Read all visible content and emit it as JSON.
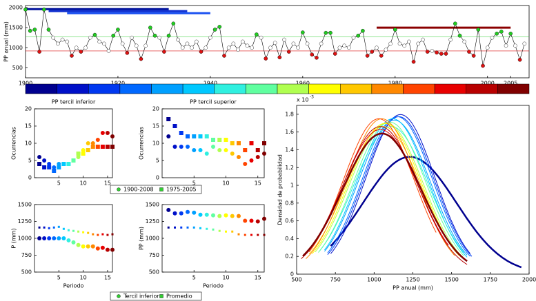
{
  "chart_data": [
    {
      "type": "line",
      "y_label": "PP anual (mm)",
      "x": [
        1900,
        1901,
        1902,
        1903,
        1904,
        1905,
        1906,
        1907,
        1908,
        1909,
        1910,
        1911,
        1912,
        1913,
        1914,
        1915,
        1916,
        1917,
        1918,
        1919,
        1920,
        1921,
        1922,
        1923,
        1924,
        1925,
        1926,
        1927,
        1928,
        1929,
        1930,
        1931,
        1932,
        1933,
        1934,
        1935,
        1936,
        1937,
        1938,
        1939,
        1940,
        1941,
        1942,
        1943,
        1944,
        1945,
        1946,
        1947,
        1948,
        1949,
        1950,
        1951,
        1952,
        1953,
        1954,
        1955,
        1956,
        1957,
        1958,
        1959,
        1960,
        1961,
        1962,
        1963,
        1964,
        1965,
        1966,
        1967,
        1968,
        1969,
        1970,
        1971,
        1972,
        1973,
        1974,
        1975,
        1976,
        1977,
        1978,
        1979,
        1980,
        1981,
        1982,
        1983,
        1984,
        1985,
        1986,
        1987,
        1988,
        1989,
        1990,
        1991,
        1992,
        1993,
        1994,
        1995,
        1996,
        1997,
        1998,
        1999,
        2000,
        2001,
        2002,
        2003,
        2004,
        2005,
        2006,
        2007,
        2008
      ],
      "values": [
        1950,
        1420,
        1450,
        900,
        1950,
        1450,
        1250,
        1100,
        1200,
        1150,
        800,
        1000,
        900,
        1000,
        1250,
        1320,
        1150,
        1100,
        920,
        1300,
        1450,
        1100,
        870,
        1250,
        1050,
        720,
        1050,
        1500,
        1300,
        1250,
        900,
        1300,
        1600,
        1200,
        1000,
        1100,
        1000,
        1150,
        900,
        1000,
        1250,
        1450,
        1520,
        800,
        1000,
        1100,
        950,
        1150,
        1050,
        1000,
        1330,
        1250,
        730,
        1000,
        1120,
        760,
        1200,
        900,
        1100,
        1000,
        1380,
        1100,
        830,
        750,
        1100,
        1370,
        1370,
        850,
        1000,
        1050,
        1000,
        1250,
        1300,
        1420,
        800,
        900,
        1000,
        800,
        950,
        1100,
        1450,
        1100,
        1050,
        1150,
        650,
        1100,
        1200,
        900,
        920,
        880,
        850,
        850,
        1200,
        1600,
        1300,
        1150,
        900,
        800,
        1450,
        550,
        1000,
        1250,
        1350,
        1400,
        1050,
        1350,
        1050,
        700,
        1100
      ],
      "line_color": "#000000",
      "marker_color": "#ffffff",
      "upper_tercile": 1270,
      "upper_color": "#22cc22",
      "lower_tercile": 920,
      "lower_color": "#dd1111",
      "xlim": [
        1900,
        2009
      ],
      "ylim": [
        250,
        2050
      ],
      "xticks": [
        1900,
        1920,
        1940,
        1960,
        1980,
        2000,
        2005
      ],
      "yticks": [
        500,
        1000,
        1500,
        2000
      ],
      "periods": [
        {
          "start": 1900,
          "end": 1931,
          "y": 1960,
          "color": "#00109a"
        },
        {
          "start": 1905,
          "end": 1935,
          "y": 1910,
          "color": "#1030d0"
        },
        {
          "start": 1909,
          "end": 1940,
          "y": 1860,
          "color": "#1a50f0"
        },
        {
          "start": 1976,
          "end": 2005,
          "y": 1500,
          "color": "#8b0000"
        }
      ]
    },
    {
      "type": "colorbar",
      "colors": [
        "#00008f",
        "#0010c8",
        "#0038f0",
        "#0068ff",
        "#00a0ff",
        "#00c8ff",
        "#30f0e0",
        "#60ffa0",
        "#b0ff50",
        "#ffff00",
        "#ffc800",
        "#ff8800",
        "#ff4400",
        "#e80000",
        "#b80000",
        "#800000"
      ]
    },
    {
      "type": "scatter",
      "title": "PP tercil inferior",
      "y_label": "Ocurrencias",
      "x": [
        1,
        2,
        3,
        4,
        5,
        6,
        7,
        8,
        9,
        10,
        11,
        12,
        13,
        14,
        15,
        16
      ],
      "xlim": [
        0,
        16
      ],
      "ylim": [
        0,
        20
      ],
      "xticks": [
        5,
        10,
        15
      ],
      "yticks": [
        0,
        5,
        10,
        15,
        20
      ],
      "legend_color": "#33cc33",
      "series": [
        {
          "name": "1900-2008",
          "marker": "circle",
          "size": 3,
          "values": [
            6,
            5,
            4,
            3,
            4,
            4,
            4,
            5,
            6,
            8,
            10,
            10,
            11,
            13,
            13,
            12
          ]
        },
        {
          "name": "1975-2005",
          "marker": "square",
          "size": 3,
          "values": [
            4,
            3,
            3,
            2,
            3,
            4,
            4,
            5,
            7,
            7,
            8,
            9,
            9,
            9,
            9,
            9
          ]
        }
      ]
    },
    {
      "type": "scatter",
      "title": "PP tercil superior",
      "y_label": "Ocurrencias",
      "x": [
        1,
        2,
        3,
        4,
        5,
        6,
        7,
        8,
        9,
        10,
        11,
        12,
        13,
        14,
        15,
        16
      ],
      "xlim": [
        0,
        16
      ],
      "ylim": [
        0,
        20
      ],
      "xticks": [
        5,
        10,
        15
      ],
      "yticks": [
        0,
        5,
        10,
        15,
        20
      ],
      "series": [
        {
          "marker": "circle",
          "size": 3,
          "values": [
            12,
            9,
            9,
            9,
            8,
            8,
            7,
            9,
            8,
            8,
            7,
            6,
            4,
            5,
            6,
            7
          ]
        },
        {
          "marker": "square",
          "size": 3,
          "values": [
            17,
            15,
            13,
            12,
            12,
            12,
            12,
            11,
            11,
            11,
            10,
            10,
            8,
            10,
            8,
            10
          ]
        }
      ]
    },
    {
      "type": "scatter",
      "y_label": "P (mm)",
      "x_label": "Periodo",
      "x": [
        1,
        2,
        3,
        4,
        5,
        6,
        7,
        8,
        9,
        10,
        11,
        12,
        13,
        14,
        15,
        16
      ],
      "xlim": [
        0,
        16
      ],
      "ylim": [
        500,
        1500
      ],
      "xticks": [
        5,
        10,
        15
      ],
      "yticks": [
        500,
        750,
        1000,
        1250,
        1500
      ],
      "legend_color": "#33cc33",
      "series": [
        {
          "name": "Tercil inferior",
          "marker": "circle",
          "size": 3,
          "values": [
            1000,
            1000,
            1000,
            1000,
            1000,
            1000,
            970,
            940,
            900,
            880,
            880,
            880,
            850,
            860,
            830,
            830
          ]
        },
        {
          "name": "Promedio",
          "marker": "square",
          "size": 1.5,
          "values": [
            1160,
            1160,
            1150,
            1160,
            1170,
            1140,
            1120,
            1110,
            1100,
            1090,
            1080,
            1060,
            1050,
            1060,
            1050,
            1060
          ]
        }
      ]
    },
    {
      "type": "scatter",
      "y_label": "PP (mm)",
      "x_label": "Periodo",
      "x": [
        1,
        2,
        3,
        4,
        5,
        6,
        7,
        8,
        9,
        10,
        11,
        12,
        13,
        14,
        15,
        16
      ],
      "xlim": [
        0,
        16
      ],
      "ylim": [
        500,
        1500
      ],
      "xticks": [
        5,
        10,
        15
      ],
      "yticks": [
        500,
        750,
        1000,
        1250,
        1500
      ],
      "series": [
        {
          "marker": "circle",
          "size": 3,
          "values": [
            1420,
            1370,
            1370,
            1390,
            1380,
            1350,
            1350,
            1340,
            1330,
            1340,
            1330,
            1330,
            1260,
            1260,
            1250,
            1290
          ]
        },
        {
          "marker": "square",
          "size": 1.5,
          "values": [
            1160,
            1160,
            1160,
            1160,
            1160,
            1150,
            1140,
            1130,
            1110,
            1100,
            1100,
            1060,
            1050,
            1050,
            1050,
            1050
          ]
        }
      ]
    },
    {
      "type": "density",
      "x_label": "PP anual (mm)",
      "y_label": "Densidad de probabilidad",
      "y_multiplier": "x 10",
      "y_exponent": "-3",
      "xlim": [
        500,
        2000
      ],
      "ylim": [
        0,
        1.9
      ],
      "xticks": [
        500,
        750,
        1000,
        1250,
        1500,
        1750,
        2000
      ],
      "yticks": [
        0,
        0.2,
        0.4,
        0.6,
        0.8,
        1,
        1.2,
        1.4,
        1.6,
        1.8
      ],
      "curves": [
        {
          "mean": 1230,
          "sd": 302,
          "range": [
            720,
            1950
          ],
          "width": 2.5
        },
        {
          "mean": 1170,
          "sd": 222,
          "range": [
            720,
            1620
          ],
          "width": 1
        },
        {
          "mean": 1160,
          "sd": 225,
          "range": [
            700,
            1630
          ],
          "width": 1
        },
        {
          "mean": 1150,
          "sd": 225,
          "range": [
            700,
            1620
          ],
          "width": 1
        },
        {
          "mean": 1130,
          "sd": 230,
          "range": [
            680,
            1600
          ],
          "width": 1
        },
        {
          "mean": 1120,
          "sd": 228,
          "range": [
            680,
            1600
          ],
          "width": 1
        },
        {
          "mean": 1110,
          "sd": 240,
          "range": [
            650,
            1580
          ],
          "width": 1
        },
        {
          "mean": 1100,
          "sd": 233,
          "range": [
            640,
            1580
          ],
          "width": 1
        },
        {
          "mean": 1080,
          "sd": 235,
          "range": [
            620,
            1560
          ],
          "width": 1
        },
        {
          "mean": 1070,
          "sd": 235,
          "range": [
            600,
            1560
          ],
          "width": 1
        },
        {
          "mean": 1060,
          "sd": 240,
          "range": [
            580,
            1550
          ],
          "width": 1
        },
        {
          "mean": 1050,
          "sd": 228,
          "range": [
            560,
            1520
          ],
          "width": 1
        },
        {
          "mean": 1030,
          "sd": 228,
          "range": [
            580,
            1400
          ],
          "width": 1
        },
        {
          "mean": 1040,
          "sd": 245,
          "range": [
            540,
            1480
          ],
          "width": 1
        },
        {
          "mean": 1040,
          "sd": 240,
          "range": [
            530,
            1600
          ],
          "width": 1
        },
        {
          "mean": 1050,
          "sd": 252,
          "range": [
            540,
            1600
          ],
          "width": 2.5
        }
      ]
    }
  ]
}
